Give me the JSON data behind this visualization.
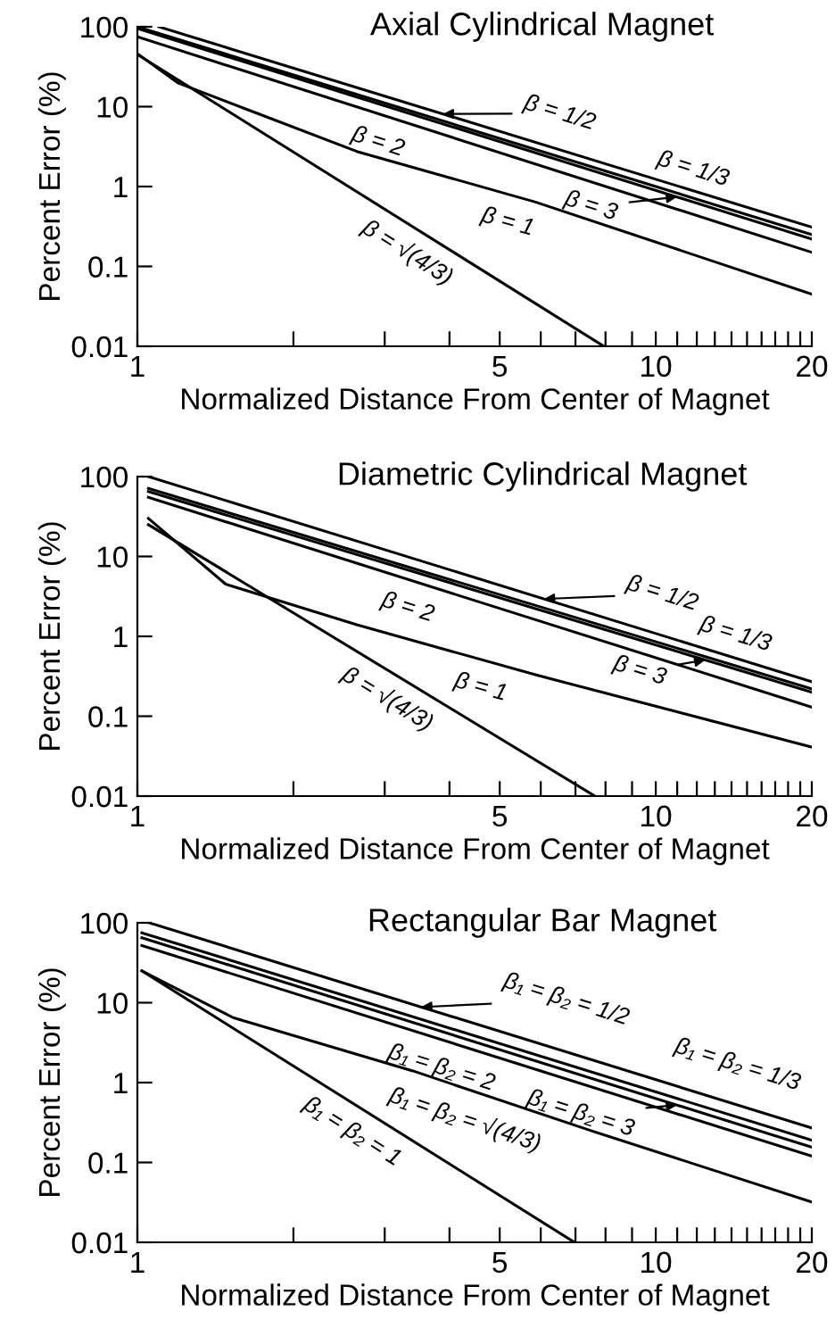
{
  "chart_data": [
    {
      "type": "line",
      "title": "Axial Cylindrical Magnet",
      "xlabel": "Normalized Distance From Center of Magnet",
      "ylabel": "Percent Error (%)",
      "log": "xy",
      "xlim": [
        1,
        20
      ],
      "ylim": [
        0.01,
        100
      ],
      "xticks": [
        1,
        {
          "value": 2,
          "label": null
        },
        {
          "value": 3,
          "label": null
        },
        {
          "value": 4,
          "label": null
        },
        5,
        {
          "value": 6,
          "label": null
        },
        {
          "value": 7,
          "label": null
        },
        {
          "value": 8,
          "label": null
        },
        {
          "value": 9,
          "label": null
        },
        10,
        {
          "value": 11,
          "label": null
        },
        {
          "value": 12,
          "label": null
        },
        {
          "value": 13,
          "label": null
        },
        {
          "value": 14,
          "label": null
        },
        {
          "value": 15,
          "label": null
        },
        {
          "value": 16,
          "label": null
        },
        {
          "value": 17,
          "label": null
        },
        {
          "value": 18,
          "label": null
        },
        {
          "value": 19,
          "label": null
        },
        20
      ],
      "yticks": [
        0.01,
        0.1,
        1,
        10,
        100
      ],
      "grid": false,
      "series": [
        {
          "name": "β = 1/2",
          "color": "#000000",
          "x": [
            1.1,
            20
          ],
          "values": [
            100,
            0.31
          ]
        },
        {
          "name": "β = 1/3",
          "color": "#000000",
          "x": [
            1,
            20
          ],
          "values": [
            100,
            0.25
          ]
        },
        {
          "name": "β = 3",
          "color": "#000000",
          "x": [
            1,
            20
          ],
          "values": [
            95,
            0.22
          ]
        },
        {
          "name": "β = 2",
          "color": "#000000",
          "x": [
            1,
            20
          ],
          "values": [
            75,
            0.15
          ]
        },
        {
          "name": "β = 1",
          "color": "#000000",
          "x": [
            1,
            1.2,
            1.69,
            2.65,
            5.86,
            20
          ],
          "values": [
            46,
            19.7,
            8.4,
            2.75,
            0.64,
            0.045
          ]
        },
        {
          "name": "β = √(4/3)",
          "color": "#000000",
          "x": [
            1,
            7.94
          ],
          "values": [
            45,
            0.01
          ]
        }
      ]
    },
    {
      "type": "line",
      "title": "Diametric Cylindrical Magnet",
      "xlabel": "Normalized Distance From Center of Magnet",
      "ylabel": "Percent Error (%)",
      "log": "xy",
      "xlim": [
        1,
        20
      ],
      "ylim": [
        0.01,
        100
      ],
      "xticks": [
        1,
        {
          "value": 2,
          "label": null
        },
        {
          "value": 3,
          "label": null
        },
        {
          "value": 4,
          "label": null
        },
        5,
        {
          "value": 6,
          "label": null
        },
        {
          "value": 7,
          "label": null
        },
        {
          "value": 8,
          "label": null
        },
        {
          "value": 9,
          "label": null
        },
        10,
        {
          "value": 11,
          "label": null
        },
        {
          "value": 12,
          "label": null
        },
        {
          "value": 13,
          "label": null
        },
        {
          "value": 14,
          "label": null
        },
        {
          "value": 15,
          "label": null
        },
        {
          "value": 16,
          "label": null
        },
        {
          "value": 17,
          "label": null
        },
        {
          "value": 18,
          "label": null
        },
        {
          "value": 19,
          "label": null
        },
        20
      ],
      "yticks": [
        0.01,
        0.1,
        1,
        10,
        100
      ],
      "grid": false,
      "series": [
        {
          "name": "β = 1/2",
          "color": "#000000",
          "x": [
            1.05,
            20
          ],
          "values": [
            100,
            0.27
          ]
        },
        {
          "name": "β = 1/3",
          "color": "#000000",
          "x": [
            1.05,
            20
          ],
          "values": [
            71,
            0.22
          ]
        },
        {
          "name": "β = 3",
          "color": "#000000",
          "x": [
            1.05,
            20
          ],
          "values": [
            65,
            0.2
          ]
        },
        {
          "name": "β = 2",
          "color": "#000000",
          "x": [
            1.05,
            20
          ],
          "values": [
            55,
            0.13
          ]
        },
        {
          "name": "β = 1",
          "color": "#000000",
          "x": [
            1.05,
            1.48,
            2.65,
            5.86,
            20
          ],
          "values": [
            30,
            4.5,
            1.4,
            0.33,
            0.041
          ]
        },
        {
          "name": "β = √(4/3)",
          "color": "#000000",
          "x": [
            1.05,
            7.63
          ],
          "values": [
            25,
            0.01
          ]
        }
      ]
    },
    {
      "type": "line",
      "title": "Rectangular Bar Magnet",
      "xlabel": "Normalized Distance From Center of Magnet",
      "ylabel": "Percent Error (%)",
      "log": "xy",
      "xlim": [
        1,
        20
      ],
      "ylim": [
        0.01,
        100
      ],
      "xticks": [
        1,
        {
          "value": 2,
          "label": null
        },
        {
          "value": 3,
          "label": null
        },
        {
          "value": 4,
          "label": null
        },
        5,
        {
          "value": 6,
          "label": null
        },
        {
          "value": 7,
          "label": null
        },
        {
          "value": 8,
          "label": null
        },
        {
          "value": 9,
          "label": null
        },
        10,
        {
          "value": 11,
          "label": null
        },
        {
          "value": 12,
          "label": null
        },
        {
          "value": 13,
          "label": null
        },
        {
          "value": 14,
          "label": null
        },
        {
          "value": 15,
          "label": null
        },
        {
          "value": 16,
          "label": null
        },
        {
          "value": 17,
          "label": null
        },
        {
          "value": 18,
          "label": null
        },
        {
          "value": 19,
          "label": null
        },
        20
      ],
      "yticks": [
        0.01,
        0.1,
        1,
        10,
        100
      ],
      "grid": false,
      "series": [
        {
          "name": "β₁ = β₂ = 1/2",
          "color": "#000000",
          "x": [
            1.055,
            20
          ],
          "values": [
            100,
            0.27
          ]
        },
        {
          "name": "β₁ = β₂ = 1/3",
          "color": "#000000",
          "x": [
            1.02,
            20
          ],
          "values": [
            75,
            0.19
          ]
        },
        {
          "name": "β₁ = β₂ = 3",
          "color": "#000000",
          "x": [
            1.02,
            20
          ],
          "values": [
            65,
            0.155
          ]
        },
        {
          "name": "β₁ = β₂ = 2",
          "color": "#000000",
          "x": [
            1.02,
            20
          ],
          "values": [
            52,
            0.12
          ]
        },
        {
          "name": "β₁ = β₂ = √(4/3)",
          "color": "#000000",
          "x": [
            1.02,
            1.53,
            3.4,
            7.5,
            20
          ],
          "values": [
            25,
            6.5,
            1.4,
            0.25,
            0.032
          ]
        },
        {
          "name": "β₁ = β₂ = 1",
          "color": "#000000",
          "x": [
            1.02,
            6.97
          ],
          "values": [
            25,
            0.01
          ]
        }
      ]
    }
  ]
}
